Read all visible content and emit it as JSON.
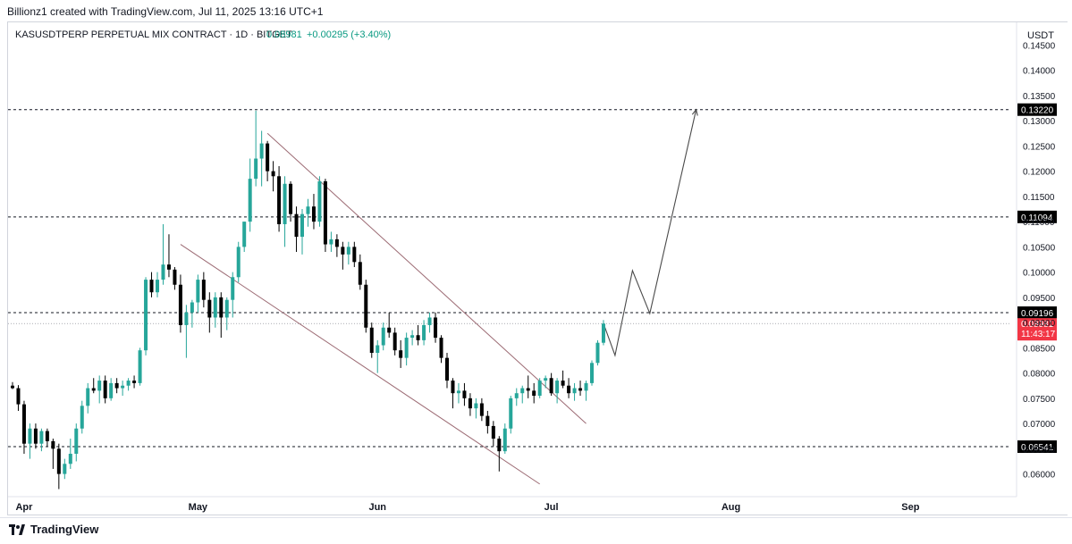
{
  "attribution": "Billionz1 created with TradingView.com, Jul 11, 2025 13:16 UTC+1",
  "brand": "TradingView",
  "colors": {
    "up": "#26a69a",
    "down": "#000000",
    "last_price_tag": "#f23645",
    "level_tag": "#000000",
    "change_text": "#089981"
  },
  "chart_data": {
    "type": "candlestick",
    "symbol_line": {
      "symbol": "KASUSDTPERP PERPETUAL MIX CONTRACT · 1D · BITGET",
      "price": "0.08981",
      "change": "+0.00295 (+3.40%)"
    },
    "currency": "USDT",
    "ylim": [
      0.0555,
      0.1495
    ],
    "y_ticks": [
      "0.14500",
      "0.14000",
      "0.13500",
      "0.13000",
      "0.12500",
      "0.12000",
      "0.11500",
      "0.11000",
      "0.10500",
      "0.10000",
      "0.09500",
      "0.09000",
      "0.08500",
      "0.08000",
      "0.07500",
      "0.07000",
      "0.06500",
      "0.06000"
    ],
    "x_ticks": [
      {
        "label": "Apr",
        "date": "2025-04-01"
      },
      {
        "label": "May",
        "date": "2025-05-01"
      },
      {
        "label": "Jun",
        "date": "2025-06-01"
      },
      {
        "label": "Jul",
        "date": "2025-07-01"
      },
      {
        "label": "Aug",
        "date": "2025-08-01"
      },
      {
        "label": "Sep",
        "date": "2025-09-01"
      }
    ],
    "horizontal_levels": [
      {
        "value": 0.1322,
        "label": "0.13220"
      },
      {
        "value": 0.11094,
        "label": "0.11094"
      },
      {
        "value": 0.09196,
        "label": "0.09196"
      },
      {
        "value": 0.06541,
        "label": "0.06541"
      }
    ],
    "last_price": {
      "value": 0.08981,
      "label": "0.08981",
      "countdown": "11:43:17"
    },
    "channel_lines": [
      {
        "from": {
          "date": "2025-05-13",
          "price": 0.1275
        },
        "to": {
          "date": "2025-07-07",
          "price": 0.07
        }
      },
      {
        "from": {
          "date": "2025-04-28",
          "price": 0.1055
        },
        "to": {
          "date": "2025-06-29",
          "price": 0.058
        }
      }
    ],
    "projection_path": [
      {
        "date": "2025-07-10",
        "price": 0.0898
      },
      {
        "date": "2025-07-12",
        "price": 0.0835
      },
      {
        "date": "2025-07-15",
        "price": 0.1003
      },
      {
        "date": "2025-07-18",
        "price": 0.0918
      },
      {
        "date": "2025-07-26",
        "price": 0.1322
      }
    ],
    "candles": [
      {
        "date": "2025-03-30",
        "o": 0.0775,
        "h": 0.0782,
        "l": 0.0768,
        "c": 0.077
      },
      {
        "date": "2025-03-31",
        "o": 0.077,
        "h": 0.0776,
        "l": 0.0725,
        "c": 0.0738
      },
      {
        "date": "2025-04-01",
        "o": 0.0738,
        "h": 0.0745,
        "l": 0.064,
        "c": 0.066
      },
      {
        "date": "2025-04-02",
        "o": 0.066,
        "h": 0.07,
        "l": 0.063,
        "c": 0.069
      },
      {
        "date": "2025-04-03",
        "o": 0.069,
        "h": 0.07,
        "l": 0.065,
        "c": 0.066
      },
      {
        "date": "2025-04-04",
        "o": 0.066,
        "h": 0.069,
        "l": 0.0645,
        "c": 0.0685
      },
      {
        "date": "2025-04-05",
        "o": 0.0685,
        "h": 0.069,
        "l": 0.0655,
        "c": 0.0665
      },
      {
        "date": "2025-04-06",
        "o": 0.0665,
        "h": 0.067,
        "l": 0.061,
        "c": 0.065
      },
      {
        "date": "2025-04-07",
        "o": 0.065,
        "h": 0.066,
        "l": 0.057,
        "c": 0.06
      },
      {
        "date": "2025-04-08",
        "o": 0.06,
        "h": 0.063,
        "l": 0.059,
        "c": 0.062
      },
      {
        "date": "2025-04-09",
        "o": 0.062,
        "h": 0.067,
        "l": 0.061,
        "c": 0.064
      },
      {
        "date": "2025-04-10",
        "o": 0.064,
        "h": 0.07,
        "l": 0.0625,
        "c": 0.069
      },
      {
        "date": "2025-04-11",
        "o": 0.069,
        "h": 0.0745,
        "l": 0.068,
        "c": 0.0735
      },
      {
        "date": "2025-04-12",
        "o": 0.0735,
        "h": 0.078,
        "l": 0.072,
        "c": 0.077
      },
      {
        "date": "2025-04-13",
        "o": 0.077,
        "h": 0.079,
        "l": 0.076,
        "c": 0.0765
      },
      {
        "date": "2025-04-14",
        "o": 0.0765,
        "h": 0.0795,
        "l": 0.074,
        "c": 0.0785
      },
      {
        "date": "2025-04-15",
        "o": 0.0785,
        "h": 0.0795,
        "l": 0.074,
        "c": 0.075
      },
      {
        "date": "2025-04-16",
        "o": 0.075,
        "h": 0.079,
        "l": 0.0745,
        "c": 0.078
      },
      {
        "date": "2025-04-17",
        "o": 0.078,
        "h": 0.079,
        "l": 0.076,
        "c": 0.077
      },
      {
        "date": "2025-04-18",
        "o": 0.077,
        "h": 0.0785,
        "l": 0.0755,
        "c": 0.0775
      },
      {
        "date": "2025-04-19",
        "o": 0.0775,
        "h": 0.079,
        "l": 0.0765,
        "c": 0.0785
      },
      {
        "date": "2025-04-20",
        "o": 0.0785,
        "h": 0.0795,
        "l": 0.077,
        "c": 0.078
      },
      {
        "date": "2025-04-21",
        "o": 0.078,
        "h": 0.085,
        "l": 0.0775,
        "c": 0.0845
      },
      {
        "date": "2025-04-22",
        "o": 0.0845,
        "h": 0.099,
        "l": 0.0835,
        "c": 0.0985
      },
      {
        "date": "2025-04-23",
        "o": 0.0985,
        "h": 0.1,
        "l": 0.095,
        "c": 0.096
      },
      {
        "date": "2025-04-24",
        "o": 0.096,
        "h": 0.1,
        "l": 0.095,
        "c": 0.0985
      },
      {
        "date": "2025-04-25",
        "o": 0.0985,
        "h": 0.1095,
        "l": 0.0975,
        "c": 0.1015
      },
      {
        "date": "2025-04-26",
        "o": 0.1015,
        "h": 0.1075,
        "l": 0.099,
        "c": 0.1005
      },
      {
        "date": "2025-04-27",
        "o": 0.1005,
        "h": 0.101,
        "l": 0.0965,
        "c": 0.0975
      },
      {
        "date": "2025-04-28",
        "o": 0.0975,
        "h": 0.0995,
        "l": 0.088,
        "c": 0.0895
      },
      {
        "date": "2025-04-29",
        "o": 0.0895,
        "h": 0.0935,
        "l": 0.083,
        "c": 0.092
      },
      {
        "date": "2025-04-30",
        "o": 0.092,
        "h": 0.0945,
        "l": 0.089,
        "c": 0.094
      },
      {
        "date": "2025-05-01",
        "o": 0.094,
        "h": 0.0995,
        "l": 0.092,
        "c": 0.0985
      },
      {
        "date": "2025-05-02",
        "o": 0.0985,
        "h": 0.1,
        "l": 0.093,
        "c": 0.0945
      },
      {
        "date": "2025-05-03",
        "o": 0.0945,
        "h": 0.096,
        "l": 0.088,
        "c": 0.091
      },
      {
        "date": "2025-05-04",
        "o": 0.091,
        "h": 0.096,
        "l": 0.089,
        "c": 0.095
      },
      {
        "date": "2025-05-05",
        "o": 0.095,
        "h": 0.096,
        "l": 0.087,
        "c": 0.091
      },
      {
        "date": "2025-05-06",
        "o": 0.091,
        "h": 0.095,
        "l": 0.0885,
        "c": 0.0945
      },
      {
        "date": "2025-05-07",
        "o": 0.0945,
        "h": 0.1,
        "l": 0.091,
        "c": 0.099
      },
      {
        "date": "2025-05-08",
        "o": 0.099,
        "h": 0.106,
        "l": 0.098,
        "c": 0.105
      },
      {
        "date": "2025-05-09",
        "o": 0.105,
        "h": 0.11,
        "l": 0.104,
        "c": 0.11
      },
      {
        "date": "2025-05-10",
        "o": 0.11,
        "h": 0.1225,
        "l": 0.108,
        "c": 0.1185
      },
      {
        "date": "2025-05-11",
        "o": 0.1185,
        "h": 0.132,
        "l": 0.117,
        "c": 0.1225
      },
      {
        "date": "2025-05-12",
        "o": 0.1225,
        "h": 0.128,
        "l": 0.117,
        "c": 0.1255
      },
      {
        "date": "2025-05-13",
        "o": 0.1255,
        "h": 0.126,
        "l": 0.118,
        "c": 0.12
      },
      {
        "date": "2025-05-14",
        "o": 0.12,
        "h": 0.122,
        "l": 0.116,
        "c": 0.119
      },
      {
        "date": "2025-05-15",
        "o": 0.119,
        "h": 0.121,
        "l": 0.108,
        "c": 0.1095
      },
      {
        "date": "2025-05-16",
        "o": 0.1095,
        "h": 0.119,
        "l": 0.105,
        "c": 0.1175
      },
      {
        "date": "2025-05-17",
        "o": 0.1175,
        "h": 0.118,
        "l": 0.11,
        "c": 0.1115
      },
      {
        "date": "2025-05-18",
        "o": 0.1115,
        "h": 0.113,
        "l": 0.104,
        "c": 0.107
      },
      {
        "date": "2025-05-19",
        "o": 0.107,
        "h": 0.1125,
        "l": 0.1035,
        "c": 0.1115
      },
      {
        "date": "2025-05-20",
        "o": 0.1115,
        "h": 0.1145,
        "l": 0.109,
        "c": 0.113
      },
      {
        "date": "2025-05-21",
        "o": 0.113,
        "h": 0.1155,
        "l": 0.1085,
        "c": 0.11
      },
      {
        "date": "2025-05-22",
        "o": 0.11,
        "h": 0.119,
        "l": 0.109,
        "c": 0.118
      },
      {
        "date": "2025-05-23",
        "o": 0.118,
        "h": 0.1185,
        "l": 0.104,
        "c": 0.1055
      },
      {
        "date": "2025-05-24",
        "o": 0.1055,
        "h": 0.108,
        "l": 0.104,
        "c": 0.1065
      },
      {
        "date": "2025-05-25",
        "o": 0.1065,
        "h": 0.1075,
        "l": 0.103,
        "c": 0.105
      },
      {
        "date": "2025-05-26",
        "o": 0.105,
        "h": 0.106,
        "l": 0.1005,
        "c": 0.1035
      },
      {
        "date": "2025-05-27",
        "o": 0.1035,
        "h": 0.106,
        "l": 0.1015,
        "c": 0.105
      },
      {
        "date": "2025-05-28",
        "o": 0.105,
        "h": 0.106,
        "l": 0.101,
        "c": 0.102
      },
      {
        "date": "2025-05-29",
        "o": 0.102,
        "h": 0.1035,
        "l": 0.0965,
        "c": 0.0975
      },
      {
        "date": "2025-05-30",
        "o": 0.0975,
        "h": 0.0985,
        "l": 0.088,
        "c": 0.089
      },
      {
        "date": "2025-05-31",
        "o": 0.089,
        "h": 0.09,
        "l": 0.083,
        "c": 0.084
      },
      {
        "date": "2025-06-01",
        "o": 0.084,
        "h": 0.0865,
        "l": 0.08,
        "c": 0.0855
      },
      {
        "date": "2025-06-02",
        "o": 0.0855,
        "h": 0.09,
        "l": 0.0845,
        "c": 0.089
      },
      {
        "date": "2025-06-03",
        "o": 0.089,
        "h": 0.092,
        "l": 0.087,
        "c": 0.088
      },
      {
        "date": "2025-06-04",
        "o": 0.088,
        "h": 0.089,
        "l": 0.0835,
        "c": 0.0845
      },
      {
        "date": "2025-06-05",
        "o": 0.0845,
        "h": 0.0865,
        "l": 0.081,
        "c": 0.083
      },
      {
        "date": "2025-06-06",
        "o": 0.083,
        "h": 0.088,
        "l": 0.0815,
        "c": 0.087
      },
      {
        "date": "2025-06-07",
        "o": 0.087,
        "h": 0.0885,
        "l": 0.0855,
        "c": 0.0875
      },
      {
        "date": "2025-06-08",
        "o": 0.0875,
        "h": 0.0895,
        "l": 0.0855,
        "c": 0.0865
      },
      {
        "date": "2025-06-09",
        "o": 0.0865,
        "h": 0.0905,
        "l": 0.0855,
        "c": 0.0895
      },
      {
        "date": "2025-06-10",
        "o": 0.0895,
        "h": 0.092,
        "l": 0.088,
        "c": 0.091
      },
      {
        "date": "2025-06-11",
        "o": 0.091,
        "h": 0.092,
        "l": 0.086,
        "c": 0.087
      },
      {
        "date": "2025-06-12",
        "o": 0.087,
        "h": 0.0875,
        "l": 0.082,
        "c": 0.083
      },
      {
        "date": "2025-06-13",
        "o": 0.083,
        "h": 0.084,
        "l": 0.077,
        "c": 0.0785
      },
      {
        "date": "2025-06-14",
        "o": 0.0785,
        "h": 0.079,
        "l": 0.073,
        "c": 0.076
      },
      {
        "date": "2025-06-15",
        "o": 0.076,
        "h": 0.078,
        "l": 0.074,
        "c": 0.0765
      },
      {
        "date": "2025-06-16",
        "o": 0.0765,
        "h": 0.078,
        "l": 0.0735,
        "c": 0.075
      },
      {
        "date": "2025-06-17",
        "o": 0.075,
        "h": 0.076,
        "l": 0.0715,
        "c": 0.073
      },
      {
        "date": "2025-06-18",
        "o": 0.073,
        "h": 0.075,
        "l": 0.071,
        "c": 0.074
      },
      {
        "date": "2025-06-19",
        "o": 0.074,
        "h": 0.075,
        "l": 0.0705,
        "c": 0.0715
      },
      {
        "date": "2025-06-20",
        "o": 0.0715,
        "h": 0.0725,
        "l": 0.068,
        "c": 0.0695
      },
      {
        "date": "2025-06-21",
        "o": 0.0695,
        "h": 0.0705,
        "l": 0.0655,
        "c": 0.067
      },
      {
        "date": "2025-06-22",
        "o": 0.067,
        "h": 0.0675,
        "l": 0.0605,
        "c": 0.0645
      },
      {
        "date": "2025-06-23",
        "o": 0.0645,
        "h": 0.07,
        "l": 0.064,
        "c": 0.069
      },
      {
        "date": "2025-06-24",
        "o": 0.069,
        "h": 0.0755,
        "l": 0.068,
        "c": 0.075
      },
      {
        "date": "2025-06-25",
        "o": 0.075,
        "h": 0.077,
        "l": 0.0735,
        "c": 0.076
      },
      {
        "date": "2025-06-26",
        "o": 0.076,
        "h": 0.0775,
        "l": 0.074,
        "c": 0.077
      },
      {
        "date": "2025-06-27",
        "o": 0.077,
        "h": 0.0795,
        "l": 0.075,
        "c": 0.0765
      },
      {
        "date": "2025-06-28",
        "o": 0.0765,
        "h": 0.078,
        "l": 0.074,
        "c": 0.0755
      },
      {
        "date": "2025-06-29",
        "o": 0.0755,
        "h": 0.079,
        "l": 0.075,
        "c": 0.0785
      },
      {
        "date": "2025-06-30",
        "o": 0.0785,
        "h": 0.0795,
        "l": 0.077,
        "c": 0.079
      },
      {
        "date": "2025-07-01",
        "o": 0.079,
        "h": 0.08,
        "l": 0.0755,
        "c": 0.076
      },
      {
        "date": "2025-07-02",
        "o": 0.076,
        "h": 0.079,
        "l": 0.074,
        "c": 0.0785
      },
      {
        "date": "2025-07-03",
        "o": 0.0785,
        "h": 0.0805,
        "l": 0.077,
        "c": 0.0775
      },
      {
        "date": "2025-07-04",
        "o": 0.0775,
        "h": 0.079,
        "l": 0.075,
        "c": 0.076
      },
      {
        "date": "2025-07-05",
        "o": 0.076,
        "h": 0.078,
        "l": 0.0745,
        "c": 0.077
      },
      {
        "date": "2025-07-06",
        "o": 0.077,
        "h": 0.0785,
        "l": 0.0755,
        "c": 0.0765
      },
      {
        "date": "2025-07-07",
        "o": 0.0765,
        "h": 0.0785,
        "l": 0.0745,
        "c": 0.078
      },
      {
        "date": "2025-07-08",
        "o": 0.078,
        "h": 0.0825,
        "l": 0.0775,
        "c": 0.082
      },
      {
        "date": "2025-07-09",
        "o": 0.082,
        "h": 0.0865,
        "l": 0.0815,
        "c": 0.086
      },
      {
        "date": "2025-07-10",
        "o": 0.086,
        "h": 0.0905,
        "l": 0.0855,
        "c": 0.0898
      }
    ]
  }
}
